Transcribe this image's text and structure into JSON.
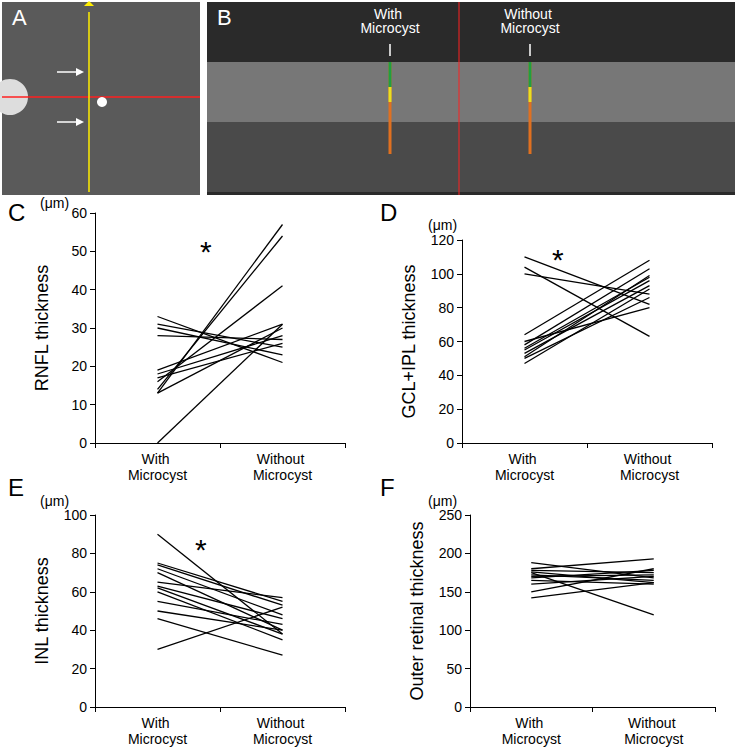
{
  "image_panels": [
    {
      "label": "A"
    },
    {
      "label": "B",
      "annotations": [
        "With Microcyst",
        "Without Microcyst"
      ]
    }
  ],
  "chart_data": [
    {
      "type": "line",
      "panel_label": "C",
      "y_label": "RNFL thickness",
      "y_unit": "(μm)",
      "annotation": "*",
      "categories": [
        "With Microcyst",
        "Without Microcyst"
      ],
      "color": "#000000",
      "grid": false,
      "ylim": [
        0,
        60
      ],
      "yticks": [
        0,
        10,
        20,
        30,
        40,
        50,
        60
      ],
      "series": [
        {
          "values": [
            33,
            21
          ]
        },
        {
          "values": [
            31,
            25
          ]
        },
        {
          "values": [
            30,
            23
          ]
        },
        {
          "values": [
            28,
            27
          ]
        },
        {
          "values": [
            19,
            31
          ]
        },
        {
          "values": [
            18,
            28
          ]
        },
        {
          "values": [
            17,
            26
          ]
        },
        {
          "values": [
            16,
            41
          ]
        },
        {
          "values": [
            14,
            54
          ]
        },
        {
          "values": [
            13,
            57
          ]
        },
        {
          "values": [
            13,
            30
          ]
        },
        {
          "values": [
            0,
            31
          ]
        }
      ]
    },
    {
      "type": "line",
      "panel_label": "D",
      "y_label": "GCL+IPL thickness",
      "y_unit": "(μm)",
      "annotation": "*",
      "categories": [
        "With Microcyst",
        "Without Microcyst"
      ],
      "color": "#000000",
      "grid": false,
      "ylim": [
        0,
        120
      ],
      "yticks": [
        0,
        20,
        40,
        60,
        80,
        100,
        120
      ],
      "series": [
        {
          "values": [
            110,
            82
          ]
        },
        {
          "values": [
            104,
            63
          ]
        },
        {
          "values": [
            100,
            88
          ]
        },
        {
          "values": [
            64,
            108
          ]
        },
        {
          "values": [
            58,
            103
          ]
        },
        {
          "values": [
            56,
            98
          ]
        },
        {
          "values": [
            55,
            96
          ]
        },
        {
          "values": [
            53,
            93
          ]
        },
        {
          "values": [
            51,
            99
          ]
        },
        {
          "values": [
            50,
            86
          ]
        },
        {
          "values": [
            47,
            91
          ]
        },
        {
          "values": [
            60,
            80
          ]
        }
      ]
    },
    {
      "type": "line",
      "panel_label": "E",
      "y_label": "INL thickness",
      "y_unit": "(μm)",
      "annotation": "*",
      "categories": [
        "With Microcyst",
        "Without Microcyst"
      ],
      "color": "#000000",
      "grid": false,
      "ylim": [
        0,
        100
      ],
      "yticks": [
        0,
        20,
        40,
        60,
        80,
        100
      ],
      "series": [
        {
          "values": [
            90,
            38
          ]
        },
        {
          "values": [
            75,
            55
          ]
        },
        {
          "values": [
            74,
            53
          ]
        },
        {
          "values": [
            72,
            48
          ]
        },
        {
          "values": [
            70,
            40
          ]
        },
        {
          "values": [
            65,
            57
          ]
        },
        {
          "values": [
            63,
            46
          ]
        },
        {
          "values": [
            62,
            38
          ]
        },
        {
          "values": [
            60,
            35
          ]
        },
        {
          "values": [
            55,
            43
          ]
        },
        {
          "values": [
            50,
            40
          ]
        },
        {
          "values": [
            46,
            27
          ]
        },
        {
          "values": [
            30,
            52
          ]
        }
      ]
    },
    {
      "type": "line",
      "panel_label": "F",
      "y_label": "Outer retinal thickness",
      "y_unit": "(μm)",
      "categories": [
        "With Microcyst",
        "Without Microcyst"
      ],
      "color": "#000000",
      "grid": false,
      "ylim": [
        0,
        250
      ],
      "yticks": [
        0,
        50,
        100,
        150,
        200,
        250
      ],
      "series": [
        {
          "values": [
            188,
            168
          ]
        },
        {
          "values": [
            180,
            193
          ]
        },
        {
          "values": [
            178,
            175
          ]
        },
        {
          "values": [
            175,
            120
          ]
        },
        {
          "values": [
            172,
            165
          ]
        },
        {
          "values": [
            170,
            172
          ]
        },
        {
          "values": [
            168,
            178
          ]
        },
        {
          "values": [
            165,
            160
          ]
        },
        {
          "values": [
            160,
            170
          ]
        },
        {
          "values": [
            150,
            180
          ]
        },
        {
          "values": [
            142,
            162
          ]
        },
        {
          "values": [
            176,
            162
          ]
        }
      ]
    }
  ]
}
